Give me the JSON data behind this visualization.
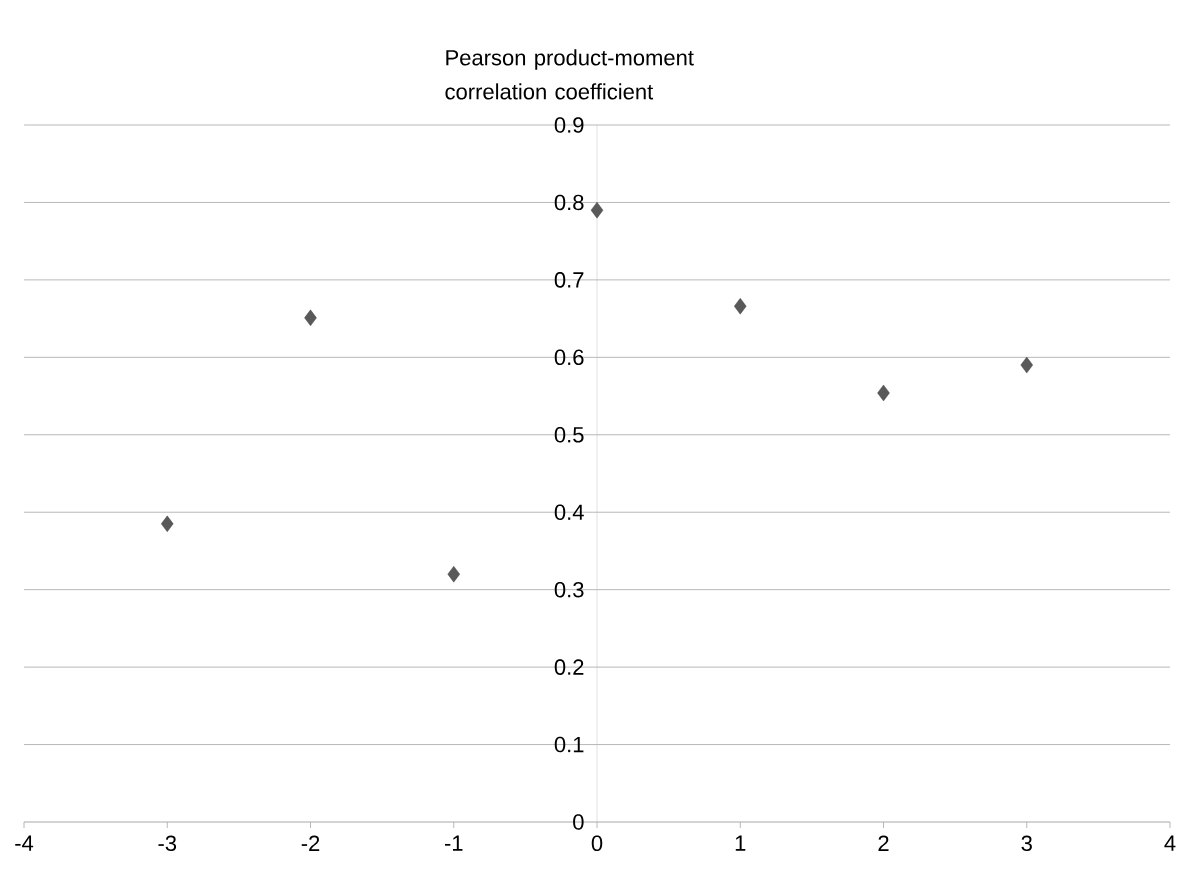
{
  "chart_data": {
    "type": "scatter",
    "title": "Pearson product-moment correlation coefficient",
    "x": [
      -3,
      -2,
      -1,
      0,
      1,
      2,
      3
    ],
    "values": [
      0.385,
      0.651,
      0.32,
      0.79,
      0.666,
      0.554,
      0.59
    ],
    "color": "#595959",
    "marker": "diamond",
    "xlim": [
      -4,
      4
    ],
    "xticks": [
      -4,
      -3,
      -2,
      -1,
      0,
      1,
      2,
      3,
      4
    ],
    "ylim": [
      0,
      0.9
    ],
    "yticks": [
      0,
      0.1,
      0.2,
      0.3,
      0.4,
      0.5,
      0.6,
      0.7,
      0.8,
      0.9
    ],
    "grid": "y"
  }
}
